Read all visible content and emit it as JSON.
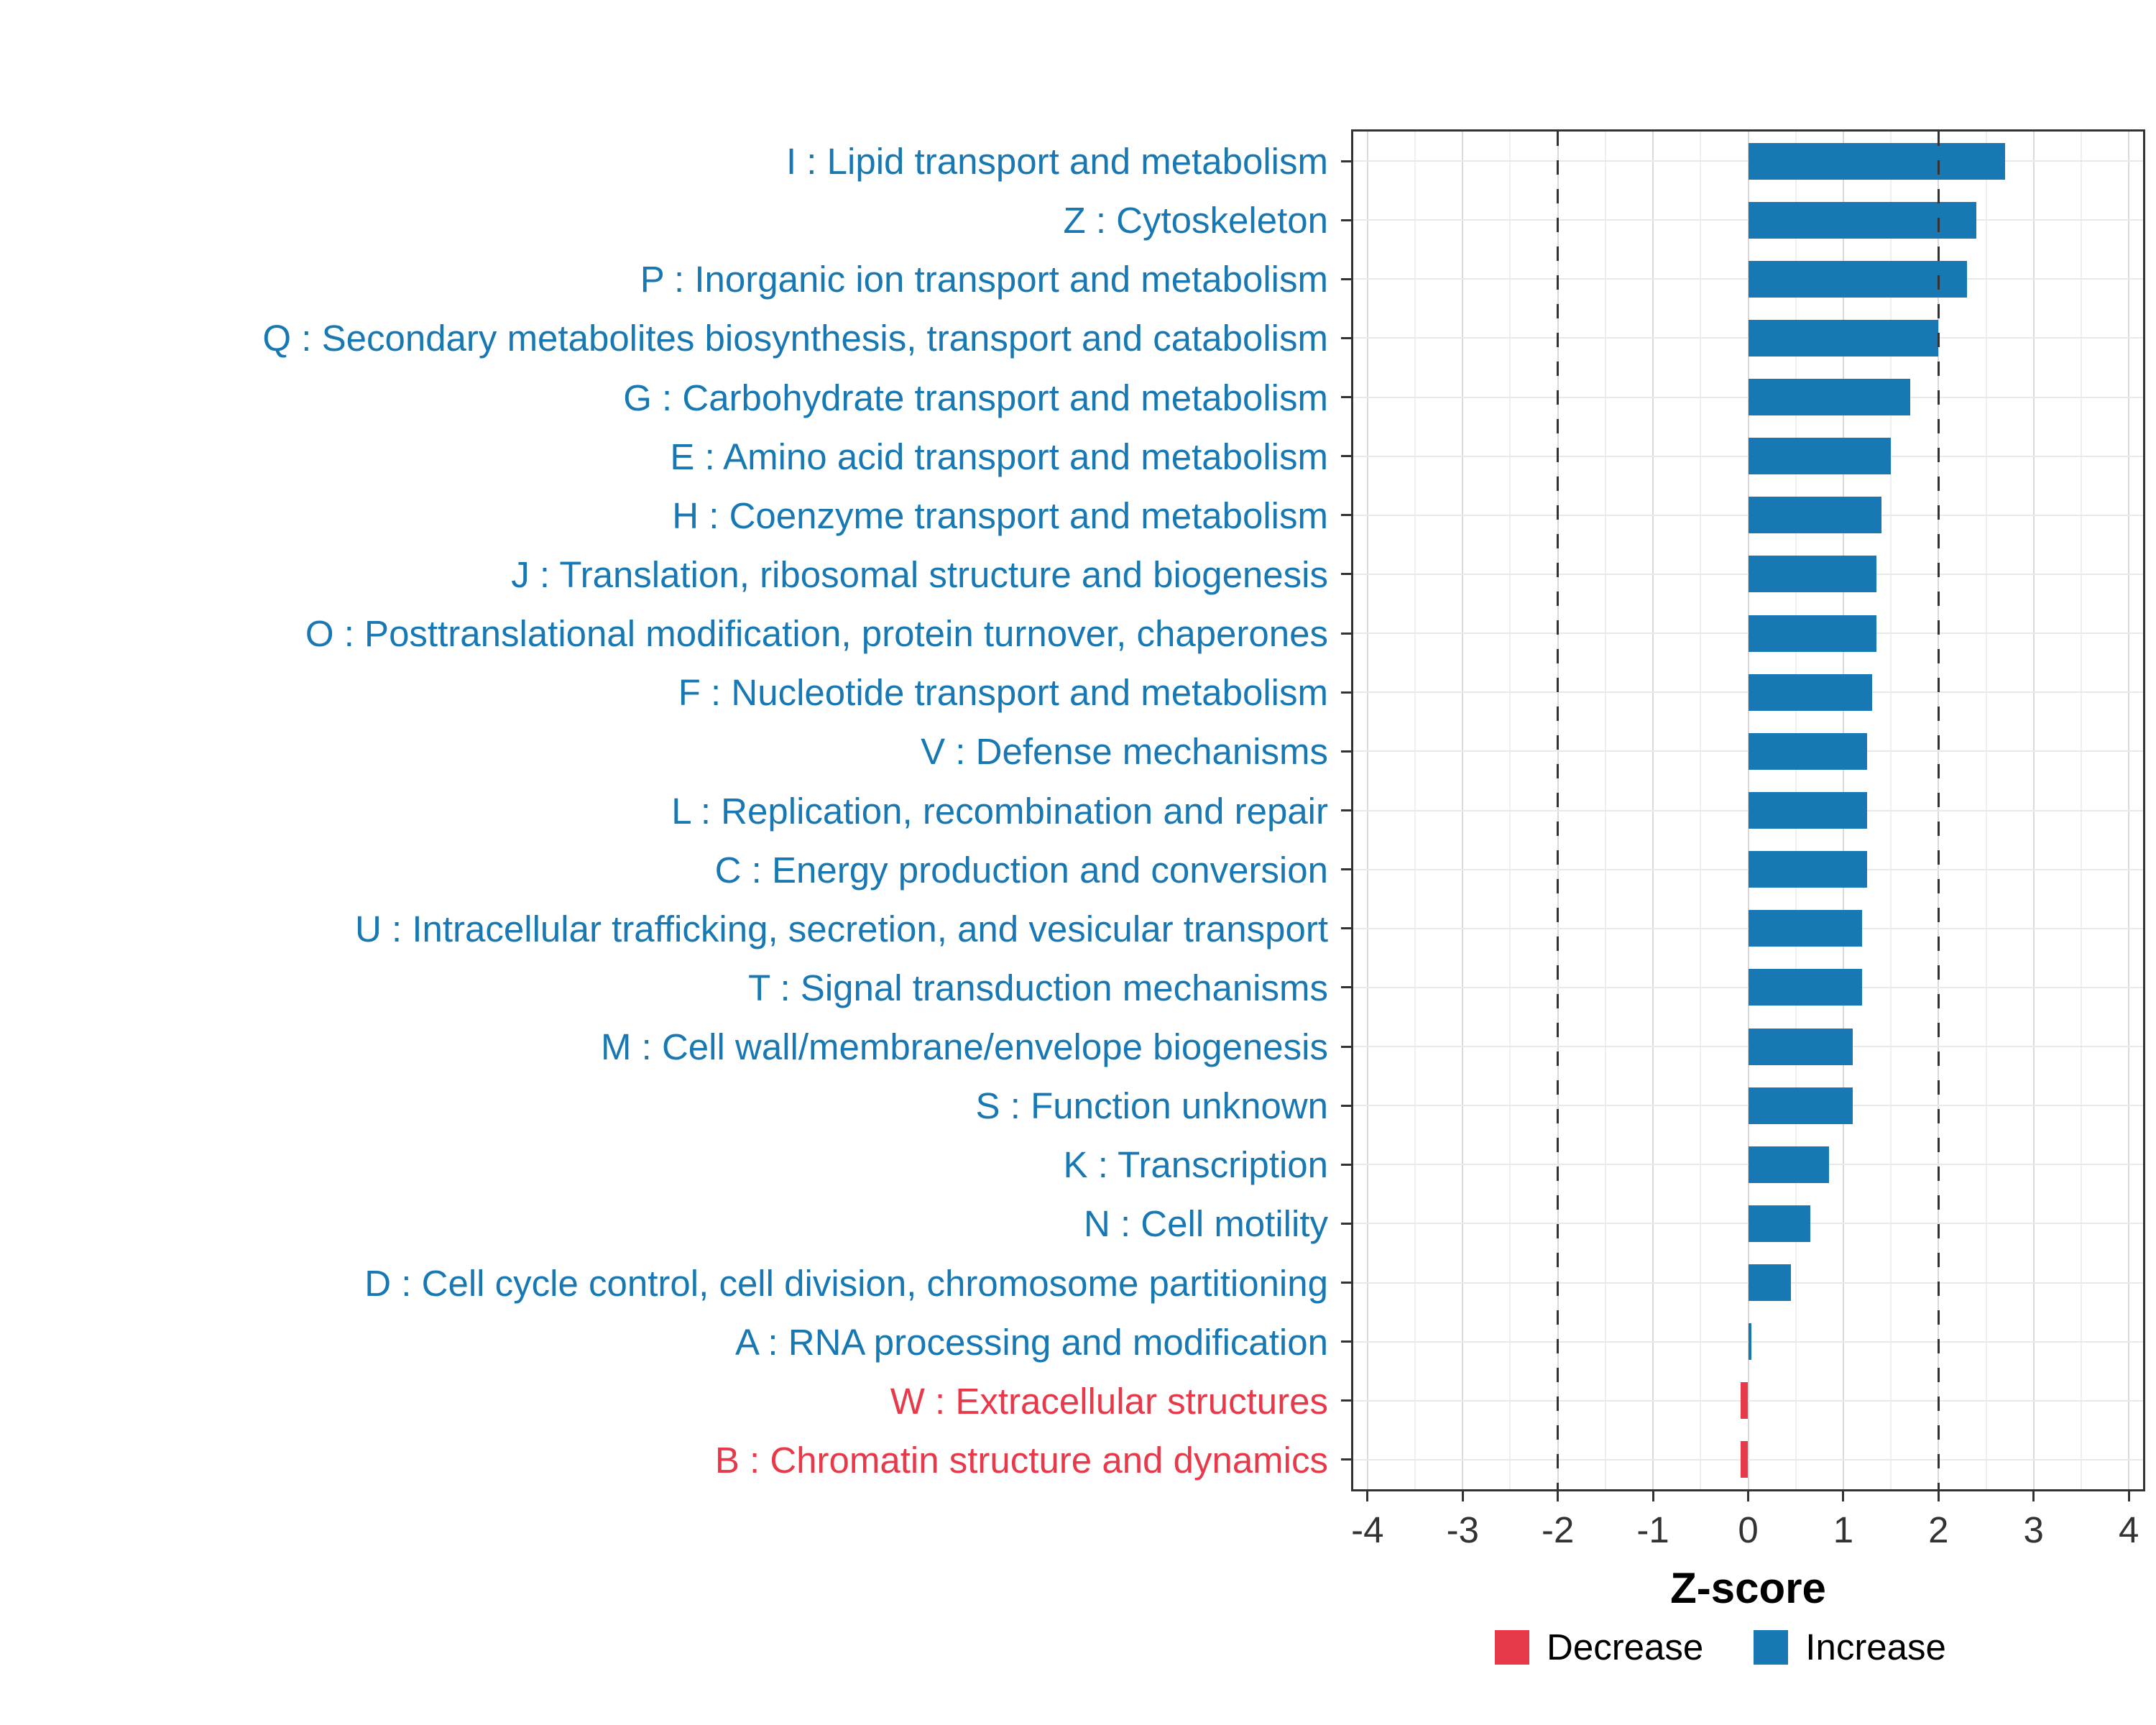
{
  "chart_data": {
    "type": "bar",
    "orientation": "horizontal",
    "title": "",
    "xlabel": "Z-score",
    "ylabel": "",
    "xlim": [
      -4,
      4
    ],
    "x_ticks": [
      -4,
      -3,
      -2,
      -1,
      0,
      1,
      2,
      3,
      4
    ],
    "x_tick_labels": [
      "-4",
      "-3",
      "-2",
      "-1",
      "0",
      "1",
      "2",
      "3",
      "4"
    ],
    "reference_lines": [
      -2,
      2
    ],
    "grid": true,
    "legend_position": "bottom-right",
    "categories": [
      "I : Lipid transport and metabolism",
      "Z : Cytoskeleton",
      "P : Inorganic ion transport and metabolism",
      "Q : Secondary metabolites biosynthesis, transport and catabolism",
      "G : Carbohydrate transport and metabolism",
      "E : Amino acid transport and metabolism",
      "H : Coenzyme transport and metabolism",
      "J : Translation, ribosomal structure and biogenesis",
      "O : Posttranslational modification, protein turnover, chaperones",
      "F : Nucleotide transport and metabolism",
      "V : Defense mechanisms",
      "L : Replication, recombination and repair",
      "C : Energy production and conversion",
      "U : Intracellular trafficking, secretion, and vesicular transport",
      "T : Signal transduction mechanisms",
      "M : Cell wall/membrane/envelope biogenesis",
      "S : Function unknown",
      "K : Transcription",
      "N : Cell motility",
      "D : Cell cycle control, cell division, chromosome partitioning",
      "A : RNA processing and modification",
      "W : Extracellular structures",
      "B : Chromatin structure and dynamics"
    ],
    "values": [
      2.7,
      2.4,
      2.3,
      2.0,
      1.7,
      1.5,
      1.4,
      1.35,
      1.35,
      1.3,
      1.25,
      1.25,
      1.25,
      1.2,
      1.2,
      1.1,
      1.1,
      0.85,
      0.65,
      0.45,
      0.03,
      -0.08,
      -0.08
    ],
    "directions": [
      "increase",
      "increase",
      "increase",
      "increase",
      "increase",
      "increase",
      "increase",
      "increase",
      "increase",
      "increase",
      "increase",
      "increase",
      "increase",
      "increase",
      "increase",
      "increase",
      "increase",
      "increase",
      "increase",
      "increase",
      "increase",
      "decrease",
      "decrease"
    ],
    "legend": [
      {
        "label": "Decrease",
        "key": "decrease"
      },
      {
        "label": "Increase",
        "key": "increase"
      }
    ],
    "colors": {
      "increase": "#1878B4",
      "decrease": "#E8394A",
      "grid_major": "#d9d9d9",
      "grid_minor": "#efefef",
      "panel_border": "#333333",
      "reference_line": "#333333"
    }
  }
}
